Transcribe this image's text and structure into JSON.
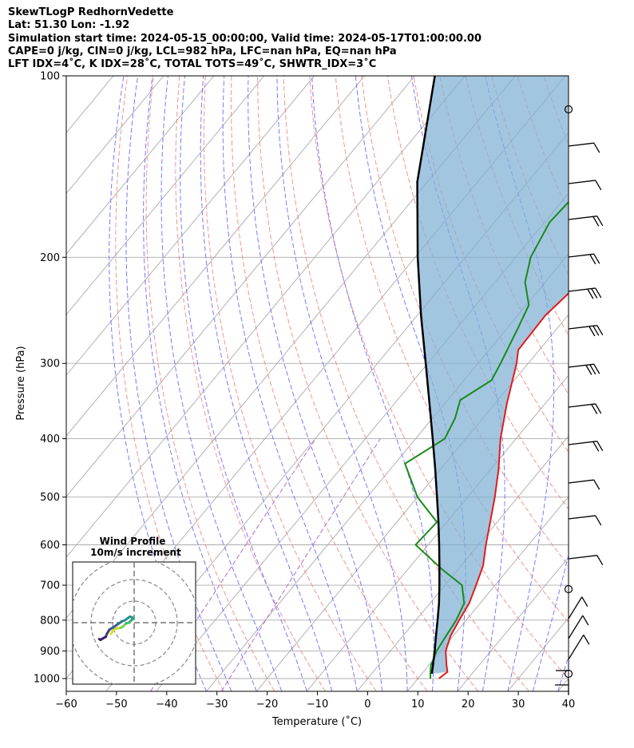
{
  "header": {
    "line1": "SkewTLogP RedhornVedette",
    "line2": "Lat: 51.30   Lon: -1.92",
    "line3": "Simulation start time: 2024-05-15_00:00:00, Valid time: 2024-05-17T01:00:00.00",
    "line4": "CAPE=0 j/kg, CIN=0 j/kg, LCL=982 hPa, LFC=nan hPa, EQ=nan hPa",
    "line5": "LFT IDX=4˚C, K IDX=28˚C, TOTAL TOTS=49˚C, SHWTR_IDX=3˚C"
  },
  "chart_data": [
    {
      "type": "line",
      "subtype": "skewT-logP",
      "xlabel": "Temperature (˚C)",
      "ylabel": "Pressure (hPa)",
      "xlim": [
        -60,
        40
      ],
      "ylim": [
        1050,
        100
      ],
      "y_scale": "log",
      "x_ticks": [
        -60,
        -50,
        -40,
        -30,
        -20,
        -10,
        0,
        10,
        20,
        30,
        40
      ],
      "x_tick_labels": [
        "−60",
        "−50",
        "−40",
        "−30",
        "−20",
        "−10",
        "0",
        "10",
        "20",
        "30",
        "40"
      ],
      "y_ticks": [
        1000,
        900,
        800,
        700,
        600,
        500,
        400,
        300,
        200,
        100
      ],
      "grid": true,
      "colors": {
        "temperature": "#e41a1c",
        "dewpoint": "#1a8a1a",
        "parcel": "#000000",
        "cape_fill": "#7fb0d4",
        "dry_adiabats": "#f08080",
        "moist_adiabats": "#6a6aff",
        "mixing_ratio": "#b070d0",
        "isotherms": "#aaaaaa"
      },
      "series": [
        {
          "role": "temperature",
          "points": [
            [
              1000,
              14.2
            ],
            [
              975,
              14.8
            ],
            [
              950,
              13.5
            ],
            [
              900,
              11.0
            ],
            [
              850,
              9.5
            ],
            [
              800,
              8.6
            ],
            [
              750,
              7.8
            ],
            [
              700,
              6.2
            ],
            [
              650,
              4.4
            ],
            [
              600,
              1.5
            ],
            [
              550,
              -1.4
            ],
            [
              500,
              -4.6
            ],
            [
              450,
              -8.4
            ],
            [
              400,
              -13.1
            ],
            [
              350,
              -17.6
            ],
            [
              300,
              -22.3
            ],
            [
              285,
              -24.2
            ],
            [
              250,
              -24.5
            ],
            [
              220,
              -23.0
            ],
            [
              200,
              -25.0
            ],
            [
              180,
              -27.0
            ],
            [
              150,
              -29.0
            ],
            [
              120,
              -30.5
            ],
            [
              100,
              -32.0
            ]
          ]
        },
        {
          "role": "dewpoint",
          "points": [
            [
              1000,
              12.5
            ],
            [
              970,
              11.2
            ],
            [
              950,
              10.4
            ],
            [
              900,
              9.2
            ],
            [
              850,
              8.6
            ],
            [
              800,
              8.0
            ],
            [
              750,
              6.8
            ],
            [
              700,
              3.4
            ],
            [
              660,
              -3.0
            ],
            [
              600,
              -12.5
            ],
            [
              550,
              -12.0
            ],
            [
              500,
              -20.0
            ],
            [
              440,
              -28.0
            ],
            [
              400,
              -24.2
            ],
            [
              370,
              -25.5
            ],
            [
              345,
              -27.5
            ],
            [
              320,
              -24.5
            ],
            [
              300,
              -25.5
            ],
            [
              260,
              -28.0
            ],
            [
              240,
              -29.5
            ],
            [
              220,
              -34.0
            ],
            [
              200,
              -37.0
            ],
            [
              175,
              -39.0
            ],
            [
              160,
              -38.5
            ],
            [
              140,
              -39.0
            ],
            [
              120,
              -40.5
            ],
            [
              100,
              -43.0
            ]
          ]
        },
        {
          "role": "parcel",
          "points": [
            [
              982,
              12.0
            ],
            [
              950,
              10.8
            ],
            [
              900,
              8.8
            ],
            [
              850,
              6.6
            ],
            [
              800,
              4.3
            ],
            [
              750,
              1.8
            ],
            [
              700,
              -1.1
            ],
            [
              650,
              -4.3
            ],
            [
              600,
              -7.8
            ],
            [
              550,
              -11.7
            ],
            [
              500,
              -16.1
            ],
            [
              450,
              -21.0
            ],
            [
              400,
              -26.6
            ],
            [
              350,
              -33.0
            ],
            [
              300,
              -40.4
            ],
            [
              250,
              -49.2
            ],
            [
              200,
              -59.5
            ],
            [
              150,
              -72.0
            ],
            [
              100,
              -86.0
            ]
          ]
        }
      ]
    },
    {
      "type": "line",
      "subtype": "hodograph",
      "title": "Wind Profile",
      "subtitle": "10m/s increment",
      "rings_ms": [
        10,
        20,
        30
      ],
      "points_uv": [
        [
          -10.8,
          -5.2
        ],
        [
          -10.2,
          -4.3
        ],
        [
          -9.3,
          -3.0
        ],
        [
          -7.8,
          -2.6
        ],
        [
          -6.2,
          -2.4
        ],
        [
          -5.0,
          -1.6
        ],
        [
          -3.8,
          -0.4
        ],
        [
          -2.5,
          0.0
        ],
        [
          -1.2,
          1.2
        ],
        [
          -0.5,
          2.3
        ],
        [
          -2.0,
          2.8
        ],
        [
          -4.3,
          1.1
        ],
        [
          -5.8,
          0.6
        ],
        [
          -6.8,
          -0.2
        ],
        [
          -8.3,
          -1.2
        ],
        [
          -9.8,
          -2.2
        ],
        [
          -11.5,
          -3.3
        ],
        [
          -12.6,
          -5.1
        ],
        [
          -13.2,
          -6.6
        ],
        [
          -14.5,
          -7.3
        ],
        [
          -15.6,
          -8.0
        ],
        [
          -16.2,
          -7.6
        ]
      ]
    }
  ]
}
